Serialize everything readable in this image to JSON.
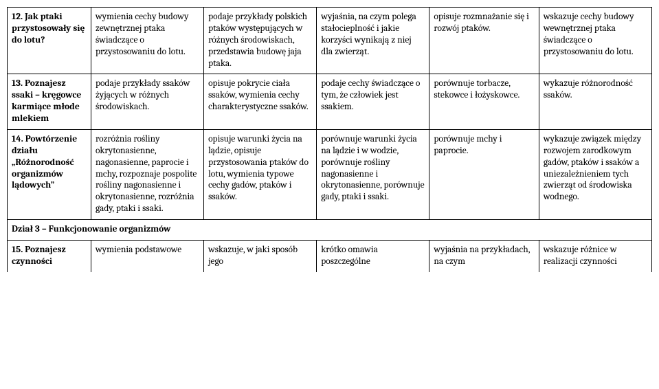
{
  "rows": [
    {
      "col0": "12. Jak ptaki przystosowały się do lotu?",
      "col1": "wymienia cechy budowy zewnętrznej ptaka świadczące o przystosowaniu do lotu.",
      "col2": "podaje przykłady polskich ptaków występujących w różnych środowiskach, przedstawia budowę jaja ptaka.",
      "col3": "wyjaśnia, na czym polega stałocieplność i jakie korzyści wynikają z niej dla zwierząt.",
      "col4": "opisuje rozmnażanie się i rozwój ptaków.",
      "col5": "wskazuje cechy budowy wewnętrznej ptaka świadczące o przystosowaniu do lotu."
    },
    {
      "col0": "13. Poznajesz ssaki – kręgowce karmiące młode mlekiem",
      "col1": "podaje przykłady ssaków żyjących w różnych środowiskach.",
      "col2": "opisuje pokrycie ciała ssaków, wymienia cechy charakterystyczne ssaków.",
      "col3": "podaje cechy świadczące o tym, że człowiek jest ssakiem.",
      "col4": "porównuje torbacze, stekowce i łożyskowce.",
      "col5": "wykazuje różnorodność ssaków."
    },
    {
      "col0": "14. Powtórzenie działu „Różnorodność organizmów lądowych”",
      "col1": "rozróżnia rośliny okrytonasienne, nagonasienne, paprocie i mchy, rozpoznaje pospolite rośliny nagonasienne i okrytonasienne, rozróżnia gady, ptaki i ssaki.",
      "col2": "opisuje warunki życia na lądzie, opisuje przystosowania ptaków do lotu, wymienia typowe cechy gadów, ptaków i ssaków.",
      "col3": "porównuje warunki życia na lądzie i w wodzie, porównuje rośliny nagonasienne i okrytonasienne, porównuje gady, ptaki i ssaki.",
      "col4": "porównuje mchy i paprocie.",
      "col5": "wykazuje związek między rozwojem zarodkowym gadów, ptaków i ssaków a uniezależnieniem tych zwierząt od środowiska wodnego."
    }
  ],
  "section_title": "Dział 3 – Funkcjonowanie organizmów",
  "cutoff_row": {
    "col0": "15. Poznajesz czynności",
    "col1": "wymienia podstawowe",
    "col2": "wskazuje, w jaki sposób jego",
    "col3": "krótko omawia poszczególne",
    "col4": "wyjaśnia na przykładach, na czym",
    "col5": "wskazuje różnice w realizacji czynności"
  },
  "style": {
    "font_family": "Cambria, Georgia, serif",
    "font_size_pt": 10,
    "border_color": "#000000",
    "background_color": "#ffffff",
    "text_color": "#000000"
  }
}
